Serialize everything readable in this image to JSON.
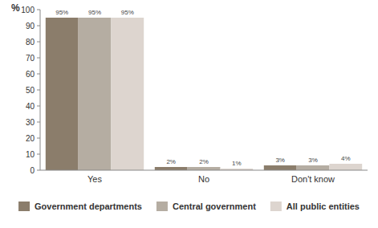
{
  "chart_data": {
    "type": "bar",
    "y_label": "%",
    "categories": [
      "Yes",
      "No",
      "Don't know"
    ],
    "series": [
      {
        "name": "Government departments",
        "color": "#8b7d6b",
        "values": [
          95,
          2,
          3
        ],
        "value_labels": [
          "95%",
          "2%",
          "3%"
        ]
      },
      {
        "name": "Central government",
        "color": "#b5ada2",
        "values": [
          95,
          2,
          3
        ],
        "value_labels": [
          "95%",
          "2%",
          "3%"
        ]
      },
      {
        "name": "All public entities",
        "color": "#ddd5cf",
        "values": [
          95,
          1,
          4
        ],
        "value_labels": [
          "95%",
          "1%",
          "4%"
        ]
      }
    ],
    "ylim": [
      0,
      100
    ],
    "yticks": [
      0,
      10,
      20,
      30,
      40,
      50,
      60,
      70,
      80,
      90,
      100
    ],
    "grid": false,
    "data_labels": true,
    "legend": "bottom"
  }
}
